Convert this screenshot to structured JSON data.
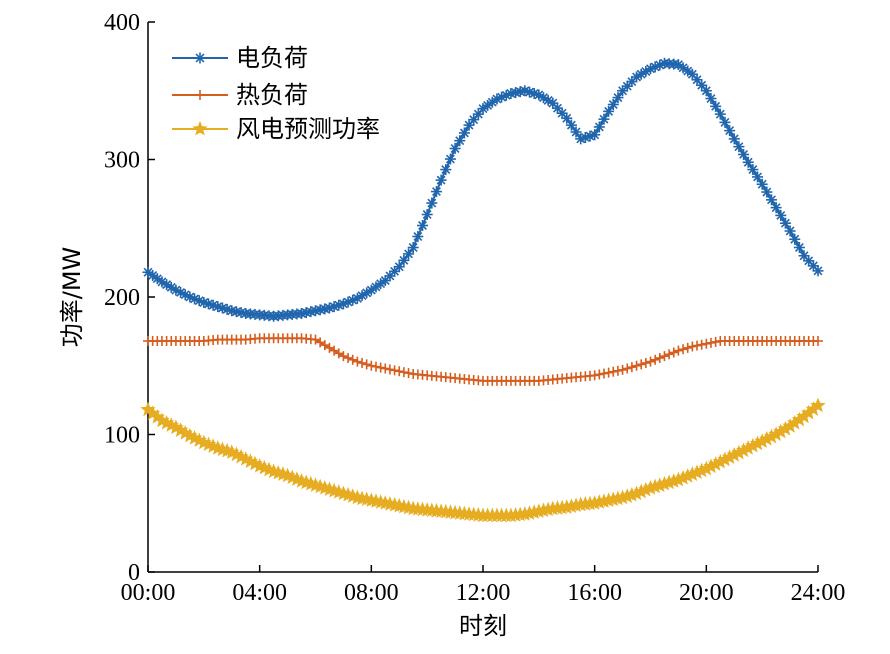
{
  "chart_data": {
    "type": "line",
    "xlabel": "时刻",
    "ylabel": "功率/MW",
    "xlim": [
      0,
      24
    ],
    "ylim": [
      0,
      400
    ],
    "x_ticks": [
      0,
      4,
      8,
      12,
      16,
      20,
      24
    ],
    "x_tick_labels": [
      "00:00",
      "04:00",
      "08:00",
      "12:00",
      "16:00",
      "20:00",
      "24:00"
    ],
    "y_ticks": [
      0,
      100,
      200,
      300,
      400
    ],
    "y_tick_labels": [
      "0",
      "100",
      "200",
      "300",
      "400"
    ],
    "grid": false,
    "legend_position": "top-left",
    "series": [
      {
        "name": "电负荷",
        "color": "#2166ac",
        "marker": "asterisk",
        "x": [
          0,
          0.5,
          1,
          1.5,
          2,
          2.5,
          3,
          3.5,
          4,
          4.5,
          5,
          5.5,
          6,
          6.5,
          7,
          7.5,
          8,
          8.5,
          9,
          9.5,
          10,
          10.5,
          11,
          11.5,
          12,
          12.5,
          13,
          13.5,
          14,
          14.5,
          15,
          15.5,
          16,
          16.5,
          17,
          17.5,
          18,
          18.5,
          19,
          19.5,
          20,
          20.5,
          21,
          21.5,
          22,
          22.5,
          23,
          23.5,
          24
        ],
        "values": [
          218,
          211,
          205,
          200,
          196,
          193,
          190,
          188,
          187,
          186,
          187,
          188,
          190,
          192,
          195,
          199,
          205,
          212,
          222,
          236,
          260,
          285,
          308,
          325,
          337,
          344,
          348,
          350,
          347,
          341,
          330,
          315,
          318,
          335,
          350,
          360,
          366,
          370,
          369,
          362,
          350,
          333,
          315,
          298,
          282,
          265,
          248,
          230,
          219
        ]
      },
      {
        "name": "热负荷",
        "color": "#d55e1f",
        "marker": "plus",
        "x": [
          0,
          0.5,
          1,
          1.5,
          2,
          2.5,
          3,
          3.5,
          4,
          4.5,
          5,
          5.5,
          6,
          6.5,
          7,
          7.5,
          8,
          8.5,
          9,
          9.5,
          10,
          10.5,
          11,
          11.5,
          12,
          12.5,
          13,
          13.5,
          14,
          14.5,
          15,
          15.5,
          16,
          16.5,
          17,
          17.5,
          18,
          18.5,
          19,
          19.5,
          20,
          20.5,
          21,
          21.5,
          22,
          22.5,
          23,
          23.5,
          24
        ],
        "values": [
          168,
          168,
          168,
          168,
          168,
          169,
          169,
          169,
          170,
          170,
          170,
          170,
          169,
          163,
          157,
          153,
          150,
          148,
          146,
          144,
          143,
          142,
          141,
          140,
          139,
          139,
          139,
          139,
          139,
          140,
          141,
          142,
          143,
          145,
          147,
          150,
          153,
          157,
          161,
          164,
          166,
          168,
          168,
          168,
          168,
          168,
          168,
          168,
          168
        ]
      },
      {
        "name": "风电预测功率",
        "color": "#e6ad22",
        "marker": "star",
        "x": [
          0,
          0.5,
          1,
          1.5,
          2,
          2.5,
          3,
          3.5,
          4,
          4.5,
          5,
          5.5,
          6,
          6.5,
          7,
          7.5,
          8,
          8.5,
          9,
          9.5,
          10,
          10.5,
          11,
          11.5,
          12,
          12.5,
          13,
          13.5,
          14,
          14.5,
          15,
          15.5,
          16,
          16.5,
          17,
          17.5,
          18,
          18.5,
          19,
          19.5,
          20,
          20.5,
          21,
          21.5,
          22,
          22.5,
          23,
          23.5,
          24
        ],
        "values": [
          118,
          110,
          105,
          99,
          94,
          90,
          87,
          82,
          77,
          73,
          70,
          66,
          63,
          60,
          57,
          54,
          52,
          50,
          48,
          46,
          45,
          44,
          43,
          42,
          41,
          41,
          41,
          42,
          44,
          46,
          47,
          49,
          50,
          52,
          54,
          57,
          61,
          64,
          67,
          71,
          75,
          80,
          85,
          90,
          95,
          100,
          106,
          113,
          121
        ]
      }
    ]
  }
}
